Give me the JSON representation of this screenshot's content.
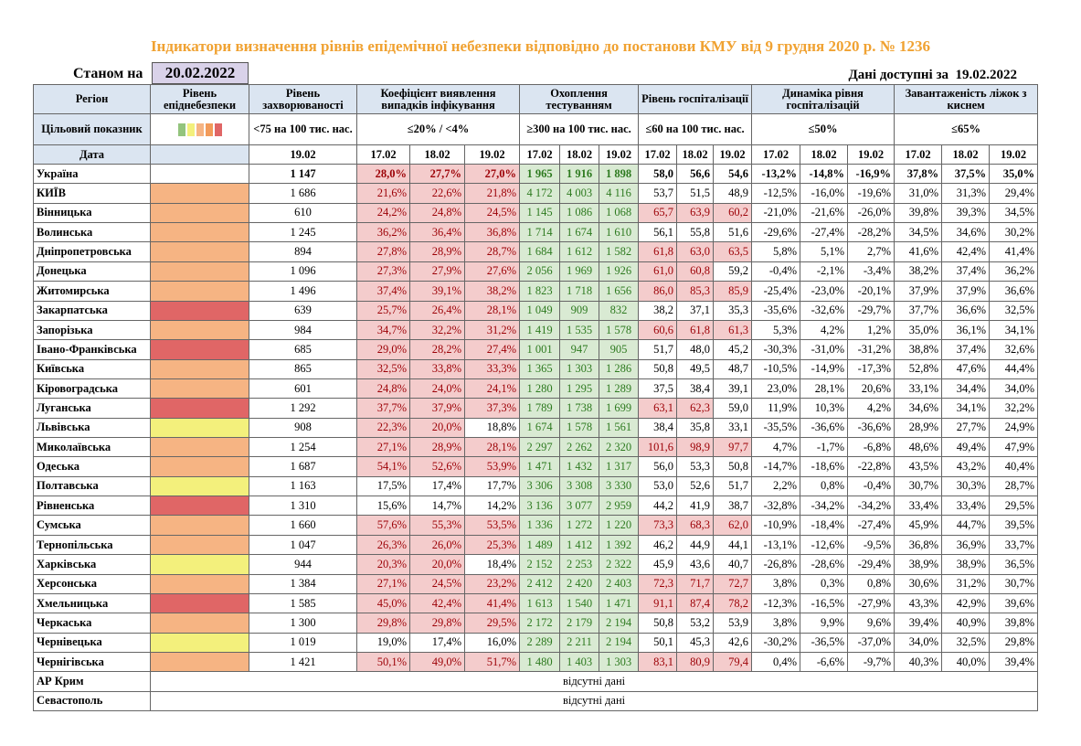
{
  "title": "Індикатори визначення рівнів епідемічної небезпеки відповідно до постанови КМУ від 9 грудня 2020 р. № 1236",
  "as_of_label": "Станом на",
  "as_of_date": "20.02.2022",
  "available_label": "Дані доступні за",
  "available_date": "19.02.2022",
  "headers": [
    "Регіон",
    "Рівень епіднебезпеки",
    "Рівень захворюваності",
    "Коефіцієнт виявлення випадків інфікування",
    "Охоплення тестуванням",
    "Рівень госпіталізації",
    "Динаміка рівня госпіталізацій",
    "Завантаженість ліжок з киснем"
  ],
  "target_label": "Цільовий показник",
  "targets": [
    "<75 на 100 тис. нас.",
    "≤20% / <4%",
    "≥300 на 100 тис. нас.",
    "≤60 на 100 тис. нас.",
    "≤50%",
    "≤65%"
  ],
  "date_label": "Дата",
  "incidence_date": "19.02",
  "dates": [
    "17.02",
    "18.02",
    "19.02"
  ],
  "testing_fill": "#d9ead3",
  "rows": [
    {
      "region": "Україна",
      "level_fill": null,
      "incidence": "1 147",
      "detection": [
        "28,0%",
        "27,7%",
        "27,0%"
      ],
      "detection_fill": [
        "#f4cccc",
        "#f4cccc",
        "#f4cccc"
      ],
      "testing": [
        "1 965",
        "1 916",
        "1 898"
      ],
      "hospitalization": [
        "58,0",
        "56,6",
        "54,6"
      ],
      "hosp_fill": [
        null,
        null,
        null
      ],
      "dynamics": [
        "-13,2%",
        "-14,8%",
        "-16,9%"
      ],
      "oxygen": [
        "37,8%",
        "37,5%",
        "35,0%"
      ]
    },
    {
      "region": "КИЇВ",
      "level_fill": "#f6b483",
      "incidence": "1 686",
      "detection": [
        "21,6%",
        "22,6%",
        "21,8%"
      ],
      "detection_fill": [
        "#f4cccc",
        "#f4cccc",
        "#f4cccc"
      ],
      "testing": [
        "4 172",
        "4 003",
        "4 116"
      ],
      "hospitalization": [
        "53,7",
        "51,5",
        "48,9"
      ],
      "hosp_fill": [
        null,
        null,
        null
      ],
      "dynamics": [
        "-12,5%",
        "-16,0%",
        "-19,6%"
      ],
      "oxygen": [
        "31,0%",
        "31,3%",
        "29,4%"
      ]
    },
    {
      "region": "Вінницька",
      "level_fill": "#f6b483",
      "incidence": "610",
      "detection": [
        "24,2%",
        "24,8%",
        "24,5%"
      ],
      "detection_fill": [
        "#f4cccc",
        "#f4cccc",
        "#f4cccc"
      ],
      "testing": [
        "1 145",
        "1 086",
        "1 068"
      ],
      "hospitalization": [
        "65,7",
        "63,9",
        "60,2"
      ],
      "hosp_fill": [
        "#f4cccc",
        "#f4cccc",
        "#f4cccc"
      ],
      "dynamics": [
        "-21,0%",
        "-21,6%",
        "-26,0%"
      ],
      "oxygen": [
        "39,8%",
        "39,3%",
        "34,5%"
      ]
    },
    {
      "region": "Волинська",
      "level_fill": "#f6b483",
      "incidence": "1 245",
      "detection": [
        "36,2%",
        "36,4%",
        "36,8%"
      ],
      "detection_fill": [
        "#f4cccc",
        "#f4cccc",
        "#f4cccc"
      ],
      "testing": [
        "1 714",
        "1 674",
        "1 610"
      ],
      "hospitalization": [
        "56,1",
        "55,8",
        "51,6"
      ],
      "hosp_fill": [
        null,
        null,
        null
      ],
      "dynamics": [
        "-29,6%",
        "-27,4%",
        "-28,2%"
      ],
      "oxygen": [
        "34,5%",
        "34,6%",
        "30,2%"
      ]
    },
    {
      "region": "Дніпропетровська",
      "level_fill": "#f6b483",
      "incidence": "894",
      "detection": [
        "27,8%",
        "28,9%",
        "28,7%"
      ],
      "detection_fill": [
        "#f4cccc",
        "#f4cccc",
        "#f4cccc"
      ],
      "testing": [
        "1 684",
        "1 612",
        "1 582"
      ],
      "hospitalization": [
        "61,8",
        "63,0",
        "63,5"
      ],
      "hosp_fill": [
        "#f4cccc",
        "#f4cccc",
        "#f4cccc"
      ],
      "dynamics": [
        "5,8%",
        "5,1%",
        "2,7%"
      ],
      "oxygen": [
        "41,6%",
        "42,4%",
        "41,4%"
      ]
    },
    {
      "region": "Донецька",
      "level_fill": "#f6b483",
      "incidence": "1 096",
      "detection": [
        "27,3%",
        "27,9%",
        "27,6%"
      ],
      "detection_fill": [
        "#f4cccc",
        "#f4cccc",
        "#f4cccc"
      ],
      "testing": [
        "2 056",
        "1 969",
        "1 926"
      ],
      "hospitalization": [
        "61,0",
        "60,8",
        "59,2"
      ],
      "hosp_fill": [
        "#f4cccc",
        "#f4cccc",
        null
      ],
      "dynamics": [
        "-0,4%",
        "-2,1%",
        "-3,4%"
      ],
      "oxygen": [
        "38,2%",
        "37,4%",
        "36,2%"
      ]
    },
    {
      "region": "Житомирська",
      "level_fill": "#f6b483",
      "incidence": "1 496",
      "detection": [
        "37,4%",
        "39,1%",
        "38,2%"
      ],
      "detection_fill": [
        "#f4cccc",
        "#f4cccc",
        "#f4cccc"
      ],
      "testing": [
        "1 823",
        "1 718",
        "1 656"
      ],
      "hospitalization": [
        "86,0",
        "85,3",
        "85,9"
      ],
      "hosp_fill": [
        "#f4cccc",
        "#f4cccc",
        "#f4cccc"
      ],
      "dynamics": [
        "-25,4%",
        "-23,0%",
        "-20,1%"
      ],
      "oxygen": [
        "37,9%",
        "37,9%",
        "36,6%"
      ]
    },
    {
      "region": "Закарпатська",
      "level_fill": "#e06666",
      "incidence": "639",
      "detection": [
        "25,7%",
        "26,4%",
        "28,1%"
      ],
      "detection_fill": [
        "#f4cccc",
        "#f4cccc",
        "#f4cccc"
      ],
      "testing": [
        "1 049",
        "909",
        "832"
      ],
      "hospitalization": [
        "38,2",
        "37,1",
        "35,3"
      ],
      "hosp_fill": [
        null,
        null,
        null
      ],
      "dynamics": [
        "-35,6%",
        "-32,6%",
        "-29,7%"
      ],
      "oxygen": [
        "37,7%",
        "36,6%",
        "32,5%"
      ]
    },
    {
      "region": "Запорізька",
      "level_fill": "#f6b483",
      "incidence": "984",
      "detection": [
        "34,7%",
        "32,2%",
        "31,2%"
      ],
      "detection_fill": [
        "#f4cccc",
        "#f4cccc",
        "#f4cccc"
      ],
      "testing": [
        "1 419",
        "1 535",
        "1 578"
      ],
      "hospitalization": [
        "60,6",
        "61,8",
        "61,3"
      ],
      "hosp_fill": [
        "#f4cccc",
        "#f4cccc",
        "#f4cccc"
      ],
      "dynamics": [
        "5,3%",
        "4,2%",
        "1,2%"
      ],
      "oxygen": [
        "35,0%",
        "36,1%",
        "34,1%"
      ]
    },
    {
      "region": "Івано-Франківська",
      "level_fill": "#e06666",
      "incidence": "685",
      "detection": [
        "29,0%",
        "28,2%",
        "27,4%"
      ],
      "detection_fill": [
        "#f4cccc",
        "#f4cccc",
        "#f4cccc"
      ],
      "testing": [
        "1 001",
        "947",
        "905"
      ],
      "hospitalization": [
        "51,7",
        "48,0",
        "45,2"
      ],
      "hosp_fill": [
        null,
        null,
        null
      ],
      "dynamics": [
        "-30,3%",
        "-31,0%",
        "-31,2%"
      ],
      "oxygen": [
        "38,8%",
        "37,4%",
        "32,6%"
      ]
    },
    {
      "region": "Київська",
      "level_fill": "#f6b483",
      "incidence": "865",
      "detection": [
        "32,5%",
        "33,8%",
        "33,3%"
      ],
      "detection_fill": [
        "#f4cccc",
        "#f4cccc",
        "#f4cccc"
      ],
      "testing": [
        "1 365",
        "1 303",
        "1 286"
      ],
      "hospitalization": [
        "50,8",
        "49,5",
        "48,7"
      ],
      "hosp_fill": [
        null,
        null,
        null
      ],
      "dynamics": [
        "-10,5%",
        "-14,9%",
        "-17,3%"
      ],
      "oxygen": [
        "52,8%",
        "47,6%",
        "44,4%"
      ]
    },
    {
      "region": "Кіровоградська",
      "level_fill": "#f6b483",
      "incidence": "601",
      "detection": [
        "24,8%",
        "24,0%",
        "24,1%"
      ],
      "detection_fill": [
        "#f4cccc",
        "#f4cccc",
        "#f4cccc"
      ],
      "testing": [
        "1 280",
        "1 295",
        "1 289"
      ],
      "hospitalization": [
        "37,5",
        "38,4",
        "39,1"
      ],
      "hosp_fill": [
        null,
        null,
        null
      ],
      "dynamics": [
        "23,0%",
        "28,1%",
        "20,6%"
      ],
      "oxygen": [
        "33,1%",
        "34,4%",
        "34,0%"
      ]
    },
    {
      "region": "Луганська",
      "level_fill": "#e06666",
      "incidence": "1 292",
      "detection": [
        "37,7%",
        "37,9%",
        "37,3%"
      ],
      "detection_fill": [
        "#f4cccc",
        "#f4cccc",
        "#f4cccc"
      ],
      "testing": [
        "1 789",
        "1 738",
        "1 699"
      ],
      "hospitalization": [
        "63,1",
        "62,3",
        "59,0"
      ],
      "hosp_fill": [
        "#f4cccc",
        "#f4cccc",
        null
      ],
      "dynamics": [
        "11,9%",
        "10,3%",
        "4,2%"
      ],
      "oxygen": [
        "34,6%",
        "34,1%",
        "32,2%"
      ]
    },
    {
      "region": "Львівська",
      "level_fill": "#f3f07c",
      "incidence": "908",
      "detection": [
        "22,3%",
        "20,0%",
        "18,8%"
      ],
      "detection_fill": [
        "#f4cccc",
        "#f4cccc",
        null
      ],
      "testing": [
        "1 674",
        "1 578",
        "1 561"
      ],
      "hospitalization": [
        "38,4",
        "35,8",
        "33,1"
      ],
      "hosp_fill": [
        null,
        null,
        null
      ],
      "dynamics": [
        "-35,5%",
        "-36,6%",
        "-36,6%"
      ],
      "oxygen": [
        "28,9%",
        "27,7%",
        "24,9%"
      ]
    },
    {
      "region": "Миколаївська",
      "level_fill": "#f6b483",
      "incidence": "1 254",
      "detection": [
        "27,1%",
        "28,9%",
        "28,1%"
      ],
      "detection_fill": [
        "#f4cccc",
        "#f4cccc",
        "#f4cccc"
      ],
      "testing": [
        "2 297",
        "2 262",
        "2 320"
      ],
      "hospitalization": [
        "101,6",
        "98,9",
        "97,7"
      ],
      "hosp_fill": [
        "#f4cccc",
        "#f4cccc",
        "#f4cccc"
      ],
      "dynamics": [
        "4,7%",
        "-1,7%",
        "-6,8%"
      ],
      "oxygen": [
        "48,6%",
        "49,4%",
        "47,9%"
      ]
    },
    {
      "region": "Одеська",
      "level_fill": "#f6b483",
      "incidence": "1 687",
      "detection": [
        "54,1%",
        "52,6%",
        "53,9%"
      ],
      "detection_fill": [
        "#f4cccc",
        "#f4cccc",
        "#f4cccc"
      ],
      "testing": [
        "1 471",
        "1 432",
        "1 317"
      ],
      "hospitalization": [
        "56,0",
        "53,3",
        "50,8"
      ],
      "hosp_fill": [
        null,
        null,
        null
      ],
      "dynamics": [
        "-14,7%",
        "-18,6%",
        "-22,8%"
      ],
      "oxygen": [
        "43,5%",
        "43,2%",
        "40,4%"
      ]
    },
    {
      "region": "Полтавська",
      "level_fill": "#f3f07c",
      "incidence": "1 163",
      "detection": [
        "17,5%",
        "17,4%",
        "17,7%"
      ],
      "detection_fill": [
        null,
        null,
        null
      ],
      "testing": [
        "3 306",
        "3 308",
        "3 330"
      ],
      "hospitalization": [
        "53,0",
        "52,6",
        "51,7"
      ],
      "hosp_fill": [
        null,
        null,
        null
      ],
      "dynamics": [
        "2,2%",
        "0,8%",
        "-0,4%"
      ],
      "oxygen": [
        "30,7%",
        "30,3%",
        "28,7%"
      ]
    },
    {
      "region": "Рівненська",
      "level_fill": "#e06666",
      "incidence": "1 310",
      "detection": [
        "15,6%",
        "14,7%",
        "14,2%"
      ],
      "detection_fill": [
        null,
        null,
        null
      ],
      "testing": [
        "3 136",
        "3 077",
        "2 959"
      ],
      "hospitalization": [
        "44,2",
        "41,9",
        "38,7"
      ],
      "hosp_fill": [
        null,
        null,
        null
      ],
      "dynamics": [
        "-32,8%",
        "-34,2%",
        "-34,2%"
      ],
      "oxygen": [
        "33,4%",
        "33,4%",
        "29,5%"
      ]
    },
    {
      "region": "Сумська",
      "level_fill": "#f6b483",
      "incidence": "1 660",
      "detection": [
        "57,6%",
        "55,3%",
        "53,5%"
      ],
      "detection_fill": [
        "#f4cccc",
        "#f4cccc",
        "#f4cccc"
      ],
      "testing": [
        "1 336",
        "1 272",
        "1 220"
      ],
      "hospitalization": [
        "73,3",
        "68,3",
        "62,0"
      ],
      "hosp_fill": [
        "#f4cccc",
        "#f4cccc",
        "#f4cccc"
      ],
      "dynamics": [
        "-10,9%",
        "-18,4%",
        "-27,4%"
      ],
      "oxygen": [
        "45,9%",
        "44,7%",
        "39,5%"
      ]
    },
    {
      "region": "Тернопільська",
      "level_fill": "#f6b483",
      "incidence": "1 047",
      "detection": [
        "26,3%",
        "26,0%",
        "25,3%"
      ],
      "detection_fill": [
        "#f4cccc",
        "#f4cccc",
        "#f4cccc"
      ],
      "testing": [
        "1 489",
        "1 412",
        "1 392"
      ],
      "hospitalization": [
        "46,2",
        "44,9",
        "44,1"
      ],
      "hosp_fill": [
        null,
        null,
        null
      ],
      "dynamics": [
        "-13,1%",
        "-12,6%",
        "-9,5%"
      ],
      "oxygen": [
        "36,8%",
        "36,9%",
        "33,7%"
      ]
    },
    {
      "region": "Харківська",
      "level_fill": "#f3f07c",
      "incidence": "944",
      "detection": [
        "20,3%",
        "20,0%",
        "18,4%"
      ],
      "detection_fill": [
        "#f4cccc",
        "#f4cccc",
        null
      ],
      "testing": [
        "2 152",
        "2 253",
        "2 322"
      ],
      "hospitalization": [
        "45,9",
        "43,6",
        "40,7"
      ],
      "hosp_fill": [
        null,
        null,
        null
      ],
      "dynamics": [
        "-26,8%",
        "-28,6%",
        "-29,4%"
      ],
      "oxygen": [
        "38,9%",
        "38,9%",
        "36,5%"
      ]
    },
    {
      "region": "Херсонська",
      "level_fill": "#f6b483",
      "incidence": "1 384",
      "detection": [
        "27,1%",
        "24,5%",
        "23,2%"
      ],
      "detection_fill": [
        "#f4cccc",
        "#f4cccc",
        "#f4cccc"
      ],
      "testing": [
        "2 412",
        "2 420",
        "2 403"
      ],
      "hospitalization": [
        "72,3",
        "71,7",
        "72,7"
      ],
      "hosp_fill": [
        "#f4cccc",
        "#f4cccc",
        "#f4cccc"
      ],
      "dynamics": [
        "3,8%",
        "0,3%",
        "0,8%"
      ],
      "oxygen": [
        "30,6%",
        "31,2%",
        "30,7%"
      ]
    },
    {
      "region": "Хмельницька",
      "level_fill": "#e06666",
      "incidence": "1 585",
      "detection": [
        "45,0%",
        "42,4%",
        "41,4%"
      ],
      "detection_fill": [
        "#f4cccc",
        "#f4cccc",
        "#f4cccc"
      ],
      "testing": [
        "1 613",
        "1 540",
        "1 471"
      ],
      "hospitalization": [
        "91,1",
        "87,4",
        "78,2"
      ],
      "hosp_fill": [
        "#f4cccc",
        "#f4cccc",
        "#f4cccc"
      ],
      "dynamics": [
        "-12,3%",
        "-16,5%",
        "-27,9%"
      ],
      "oxygen": [
        "43,3%",
        "42,9%",
        "39,6%"
      ]
    },
    {
      "region": "Черкаська",
      "level_fill": "#f6b483",
      "incidence": "1 300",
      "detection": [
        "29,8%",
        "29,8%",
        "29,5%"
      ],
      "detection_fill": [
        "#f4cccc",
        "#f4cccc",
        "#f4cccc"
      ],
      "testing": [
        "2 172",
        "2 179",
        "2 194"
      ],
      "hospitalization": [
        "50,8",
        "53,2",
        "53,9"
      ],
      "hosp_fill": [
        null,
        null,
        null
      ],
      "dynamics": [
        "3,8%",
        "9,9%",
        "9,6%"
      ],
      "oxygen": [
        "39,4%",
        "40,9%",
        "39,8%"
      ]
    },
    {
      "region": "Чернівецька",
      "level_fill": "#f3f07c",
      "incidence": "1 019",
      "detection": [
        "19,0%",
        "17,4%",
        "16,0%"
      ],
      "detection_fill": [
        null,
        null,
        null
      ],
      "testing": [
        "2 289",
        "2 211",
        "2 194"
      ],
      "hospitalization": [
        "50,1",
        "45,3",
        "42,6"
      ],
      "hosp_fill": [
        null,
        null,
        null
      ],
      "dynamics": [
        "-30,2%",
        "-36,5%",
        "-37,0%"
      ],
      "oxygen": [
        "34,0%",
        "32,5%",
        "29,8%"
      ]
    },
    {
      "region": "Чернігівська",
      "level_fill": "#f6b483",
      "incidence": "1 421",
      "detection": [
        "50,1%",
        "49,0%",
        "51,7%"
      ],
      "detection_fill": [
        "#f4cccc",
        "#f4cccc",
        "#f4cccc"
      ],
      "testing": [
        "1 480",
        "1 403",
        "1 303"
      ],
      "hospitalization": [
        "83,1",
        "80,9",
        "79,4"
      ],
      "hosp_fill": [
        "#f4cccc",
        "#f4cccc",
        "#f4cccc"
      ],
      "dynamics": [
        "0,4%",
        "-6,6%",
        "-9,7%"
      ],
      "oxygen": [
        "40,3%",
        "40,0%",
        "39,4%"
      ]
    }
  ],
  "missing_rows": [
    {
      "region": "АР Крим",
      "note": "відсутні дані"
    },
    {
      "region": "Севастополь",
      "note": "відсутні дані"
    }
  ]
}
